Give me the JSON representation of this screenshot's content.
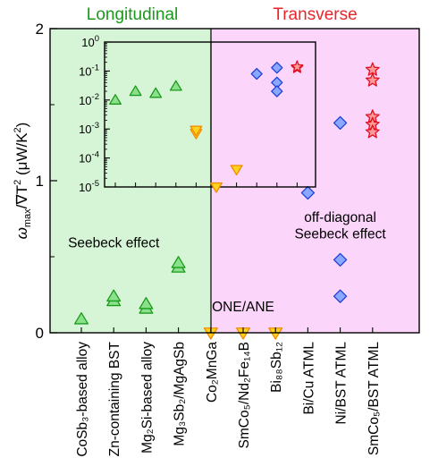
{
  "chart_data": {
    "type": "scatter",
    "y_axis": {
      "label_main": "ω",
      "label_main_sub": "max",
      "label_rest": "/∇T",
      "label_sup": "2",
      "label_unit": " (μW/K",
      "label_unit_sup": "2",
      "label_close": ")",
      "ylim": [
        0,
        2
      ],
      "ticks": [
        0,
        1,
        2
      ],
      "tick_labels": [
        "0",
        "1",
        "2"
      ]
    },
    "regions": [
      {
        "name": "Longitudinal",
        "color": "#1a9a1a",
        "fill": "#d6f5d6"
      },
      {
        "name": "Transverse",
        "color": "#e8262a",
        "fill": "#fcd5fb"
      }
    ],
    "categories": [
      {
        "label": "CoSb₃-based alloy",
        "region": "Longitudinal"
      },
      {
        "label": "Zn-containing BST",
        "region": "Longitudinal"
      },
      {
        "label": "Mg₂Si-based alloy",
        "region": "Longitudinal"
      },
      {
        "label": "Mg₃Sb₂/MgAgSb",
        "region": "Longitudinal"
      },
      {
        "label": "Co₂MnGa",
        "region": "Transverse"
      },
      {
        "label": "SmCo₅/Nd₂Fe₁₄B",
        "region": "Transverse"
      },
      {
        "label": "Bi₈₈Sb₁₂",
        "region": "Transverse"
      },
      {
        "label": "Bi/Cu ATML",
        "region": "Transverse"
      },
      {
        "label": "Ni/BST ATML",
        "region": "Transverse"
      },
      {
        "label": "SmCo₅/BST ATML",
        "region": "Transverse"
      }
    ],
    "series": [
      {
        "marker": "triangle-up",
        "fill": "#8be08b",
        "stroke": "#1a9a1a",
        "points": [
          [
            0,
            0.09
          ],
          [
            1,
            0.21
          ],
          [
            1,
            0.24
          ],
          [
            2,
            0.16
          ],
          [
            2,
            0.19
          ],
          [
            3,
            0.43
          ],
          [
            3,
            0.46
          ]
        ]
      },
      {
        "marker": "triangle-down",
        "fill": "#ffd21c",
        "stroke": "#f08c00",
        "points": [
          [
            4,
            0.0
          ],
          [
            5,
            0.0
          ],
          [
            6,
            0.0
          ]
        ]
      },
      {
        "marker": "diamond",
        "fill": "#8aa8ff",
        "stroke": "#1f3fd8",
        "points": [
          [
            7,
            0.92
          ],
          [
            8,
            1.38
          ],
          [
            8,
            0.48
          ],
          [
            8,
            0.24
          ]
        ]
      },
      {
        "marker": "star",
        "fill": "#ff9a9a",
        "stroke": "#e01020",
        "points": [
          [
            9,
            1.73
          ],
          [
            9,
            1.66
          ],
          [
            9,
            1.42
          ],
          [
            9,
            1.37
          ],
          [
            9,
            1.32
          ]
        ]
      }
    ],
    "annotations": [
      {
        "text": "Seebeck effect",
        "x": 1.0,
        "y": 0.59
      },
      {
        "text": "ONE/ANE",
        "x": 5.0,
        "y": 0.17
      },
      {
        "text": "off-diagonal",
        "x": 8.0,
        "y": 0.76
      },
      {
        "text": "Seebeck effect",
        "x": 8.0,
        "y": 0.65
      }
    ],
    "inset": {
      "y_scale": "log",
      "ylim": [
        1e-05,
        1
      ],
      "tick_base": "10",
      "tick_exponents": [
        "0",
        "-1",
        "-2",
        "-3",
        "-4",
        "-5"
      ],
      "series": [
        {
          "marker": "triangle-up",
          "fill": "#8be08b",
          "stroke": "#1a9a1a",
          "points": [
            [
              0,
              0.01
            ],
            [
              1,
              0.02
            ],
            [
              2,
              0.017
            ],
            [
              3,
              0.03
            ]
          ]
        },
        {
          "marker": "triangle-down",
          "fill": "#ffd21c",
          "stroke": "#f08c00",
          "points": [
            [
              4,
              0.0007
            ],
            [
              4,
              0.0009
            ],
            [
              5,
              1e-05
            ],
            [
              6,
              4e-05
            ]
          ]
        },
        {
          "marker": "diamond",
          "fill": "#8aa8ff",
          "stroke": "#1f3fd8",
          "points": [
            [
              7,
              0.08
            ],
            [
              8,
              0.13
            ],
            [
              8,
              0.04
            ],
            [
              8,
              0.02
            ]
          ]
        },
        {
          "marker": "star",
          "fill": "#ff9a9a",
          "stroke": "#e01020",
          "points": [
            [
              9,
              0.13
            ],
            [
              9,
              0.14
            ]
          ]
        }
      ]
    }
  }
}
